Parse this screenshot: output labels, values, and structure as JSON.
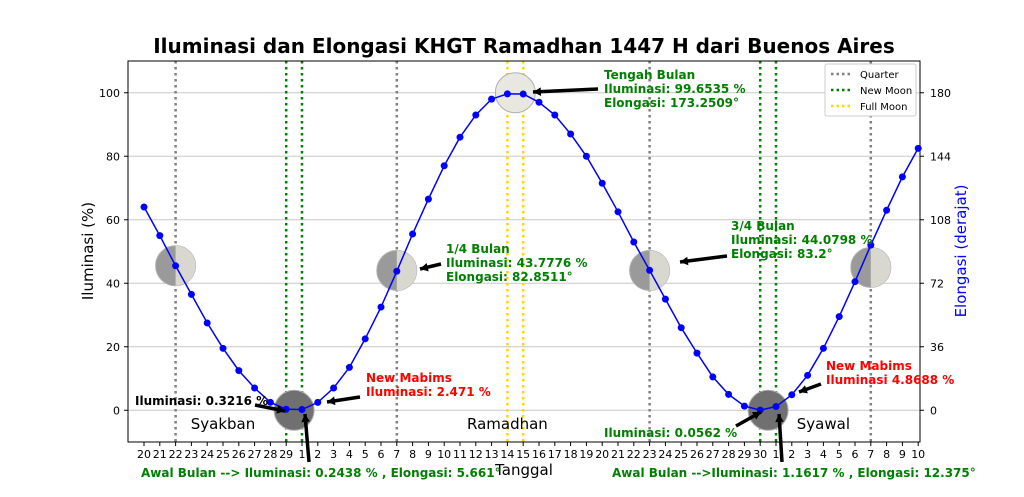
{
  "chart_data": {
    "type": "line",
    "title": "Iluminasi dan Elongasi KHGT Ramadhan 1447 H dari Buenos Aires",
    "xlabel": "Tanggal",
    "ylabel": "Iluminasi (%)",
    "y2label": "Elongasi (derajat)",
    "ylim": [
      -10,
      110
    ],
    "y_ticks": [
      0,
      20,
      40,
      60,
      80,
      100
    ],
    "y2_ticks": [
      0,
      36,
      72,
      108,
      144,
      180
    ],
    "x_tick_labels": [
      "20",
      "21",
      "22",
      "23",
      "24",
      "25",
      "26",
      "27",
      "28",
      "29",
      "1",
      "2",
      "3",
      "4",
      "5",
      "6",
      "7",
      "8",
      "9",
      "10",
      "11",
      "12",
      "13",
      "14",
      "15",
      "16",
      "17",
      "18",
      "19",
      "20",
      "21",
      "22",
      "23",
      "24",
      "25",
      "26",
      "27",
      "28",
      "29",
      "30",
      "1",
      "2",
      "3",
      "4",
      "5",
      "6",
      "7",
      "8",
      "9",
      "10"
    ],
    "grid": true,
    "legend_position": "top-right",
    "legend": [
      {
        "label": "Quarter",
        "color": "#808080"
      },
      {
        "label": "New Moon",
        "color": "#008000"
      },
      {
        "label": "Full Moon",
        "color": "#FFD700"
      }
    ],
    "series": [
      {
        "color": "#0000FF",
        "values": [
          64,
          55,
          45.5,
          36.5,
          27.5,
          19.5,
          12.5,
          7,
          2.5,
          0.3216,
          0.2438,
          2.471,
          7,
          13.5,
          22.5,
          32.5,
          43.7776,
          55.5,
          66.5,
          77,
          86,
          93,
          98,
          99.6535,
          99.6,
          97,
          93,
          87,
          80,
          71.5,
          62.5,
          53,
          44.0798,
          35,
          26,
          18,
          10.5,
          5,
          1.3,
          0.0562,
          1.1617,
          4.8688,
          11,
          19.5,
          29.5,
          40.5,
          52,
          63,
          73.5,
          82.5
        ]
      }
    ],
    "markers": {
      "quarter_x": [
        2,
        16,
        32,
        46
      ],
      "new_moon_x": [
        9,
        10,
        39,
        40
      ],
      "full_moon_x": [
        23,
        24
      ],
      "moon_y": [
        45.5,
        0,
        44,
        100,
        44,
        0,
        45
      ]
    },
    "months": [
      "Syakban",
      "Ramadhan",
      "Syawal"
    ],
    "annotations": {
      "tengah_bulan": [
        "Tengah Bulan",
        "Iluminasi: 99.6535 %",
        "Elongasi: 173.2509°"
      ],
      "quarter_1": [
        "1/4 Bulan",
        "Iluminasi: 43.7776 %",
        "Elongasi: 82.8511°"
      ],
      "quarter_3": [
        "3/4 Bulan",
        "Iluminasi: 44.0798 %",
        "Elongasi: 83.2°"
      ],
      "new_mabims_1": [
        "New Mabims",
        "Iluminasi: 2.471 %"
      ],
      "new_mabims_2": [
        "New Mabims",
        "Iluminasi 4.8688 %"
      ],
      "illum_left": "Iluminasi: 0.3216 %",
      "illum_right": "Iluminasi: 0.0562 %",
      "awal_1": "Awal Bulan --> Iluminasi: 0.2438 % , Elongasi: 5.661°",
      "awal_2": "Awal Bulan -->Iluminasi: 1.1617 % , Elongasi: 12.375°"
    }
  }
}
